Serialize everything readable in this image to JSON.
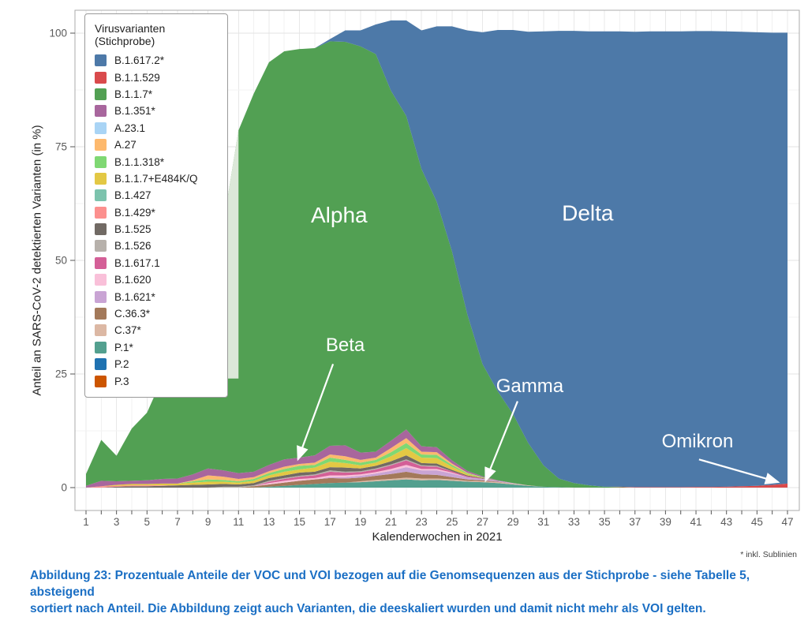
{
  "figure": {
    "footnote": "* inkl. Sublinien",
    "caption_line1": "Abbildung 23: Prozentuale Anteile der VOC und VOI bezogen auf die Genomsequenzen aus der Stichprobe - siehe Tabelle 5, absteigend",
    "caption_line2": "sortiert nach Anteil. Die Abbildung zeigt auch Varianten, die deeskaliert wurden und damit nicht mehr als VOI gelten.",
    "caption_color": "#1b6fc4"
  },
  "chart_data": {
    "type": "area",
    "stacked": true,
    "title": "",
    "legend_title": "Virusvarianten (Stichprobe)",
    "legend_position": "top-left-inside",
    "xlabel": "Kalenderwochen in 2021",
    "ylabel": "Anteil an SARS-CoV-2 detektierten Varianten (in %)",
    "xlim": [
      1,
      47
    ],
    "ylim": [
      0,
      100
    ],
    "grid": true,
    "x_ticks": [
      1,
      3,
      5,
      7,
      9,
      11,
      13,
      15,
      17,
      19,
      21,
      23,
      25,
      27,
      29,
      31,
      33,
      35,
      37,
      39,
      41,
      43,
      45,
      47
    ],
    "y_ticks": [
      0,
      25,
      50,
      75,
      100
    ],
    "weeks": [
      1,
      2,
      3,
      4,
      5,
      6,
      7,
      8,
      9,
      10,
      11,
      12,
      13,
      14,
      15,
      16,
      17,
      18,
      19,
      20,
      21,
      22,
      23,
      24,
      25,
      26,
      27,
      28,
      29,
      30,
      31,
      32,
      33,
      34,
      35,
      36,
      37,
      38,
      39,
      40,
      41,
      42,
      43,
      44,
      45,
      46,
      47
    ],
    "stack_note": "series listed in legend order; stacked bottom-to-top in reverse order (P.3 at bottom, B.1.617.2* on top); values are percent per calendar week, trailing zeros omitted",
    "series": [
      {
        "name": "B.1.617.2*",
        "color": "#4d79a8",
        "values": [
          0,
          0,
          0,
          0,
          0,
          0,
          0,
          0,
          0,
          0,
          0,
          0,
          0,
          0,
          0,
          0,
          0.5,
          2.5,
          3.5,
          6.5,
          15.5,
          21,
          30.5,
          38.6,
          49.5,
          62.4,
          73,
          79.5,
          84.5,
          90.5,
          95.5,
          98.5,
          99.5,
          99.9,
          100.2,
          100.2,
          100.2,
          100.3,
          100.3,
          100.3,
          100.3,
          100.3,
          100.2,
          100,
          99.8,
          99.5,
          99.2
        ]
      },
      {
        "name": "B.1.1.529",
        "color": "#d94a4c",
        "values": [
          0,
          0,
          0,
          0,
          0,
          0,
          0,
          0,
          0,
          0,
          0,
          0,
          0,
          0,
          0,
          0,
          0,
          0,
          0,
          0,
          0,
          0,
          0,
          0,
          0,
          0,
          0,
          0,
          0,
          0,
          0,
          0,
          0,
          0,
          0,
          0.1,
          0.1,
          0.1,
          0.1,
          0.1,
          0.15,
          0.15,
          0.2,
          0.3,
          0.4,
          0.6,
          0.9
        ]
      },
      {
        "name": "B.1.1.7*",
        "color": "#52a053",
        "values": [
          2.6,
          9,
          5.6,
          11.5,
          14.9,
          22.1,
          28,
          35.1,
          42.6,
          54,
          75.4,
          83.2,
          88.6,
          89.8,
          89.9,
          89.6,
          89,
          88.8,
          89.4,
          87.5,
          77,
          69,
          61,
          54,
          46,
          34.5,
          24.7,
          19.6,
          15.2,
          9.3,
          4.7,
          1.9,
          1,
          0.5,
          0.2,
          0.1
        ]
      },
      {
        "name": "B.1.351*",
        "color": "#a8669d",
        "values": [
          0.4,
          1.2,
          0.8,
          0.7,
          0.8,
          1,
          1.1,
          1.3,
          1.5,
          1.4,
          1.3,
          1.2,
          1.4,
          1.6,
          1.4,
          1.6,
          1.9,
          2.4,
          1.6,
          1.3,
          1.6,
          1.9,
          1.2,
          1.1,
          0.7,
          0.4,
          0.2,
          0.1
        ]
      },
      {
        "name": "A.23.1",
        "color": "#a9d4f5",
        "values": []
      },
      {
        "name": "A.27",
        "color": "#fdb96d",
        "values": [
          0,
          0,
          0,
          0,
          0,
          0,
          0,
          0.2,
          0.9,
          0.7,
          0.5,
          0.4,
          0.4,
          0.5,
          0.4,
          0.5,
          0.7,
          0.8,
          0.6,
          0.5,
          0.9,
          1.1,
          0.6,
          0.6,
          0.3,
          0.1
        ]
      },
      {
        "name": "B.1.1.318*",
        "color": "#7fd873",
        "values": [
          0,
          0,
          0,
          0,
          0,
          0,
          0,
          0.3,
          0.5,
          0.4,
          0.3,
          0.4,
          0.5,
          0.6,
          0.8,
          0.6,
          0.9,
          0.7,
          0.6,
          0.6,
          0.9,
          1.1,
          0.7,
          0.7,
          0.4,
          0.2,
          0.1
        ]
      },
      {
        "name": "B.1.1.7+E484K/Q",
        "color": "#e3c844",
        "values": [
          0,
          0,
          0.2,
          0.3,
          0.3,
          0.4,
          0.4,
          0.5,
          0.6,
          0.5,
          0.4,
          0.5,
          0.6,
          0.8,
          0.7,
          0.9,
          1.2,
          1,
          0.7,
          0.7,
          1.1,
          1.6,
          1.2,
          1.2,
          0.7,
          0.3,
          0.1
        ]
      },
      {
        "name": "B.1.427",
        "color": "#7cc3ad",
        "values": []
      },
      {
        "name": "B.1.429*",
        "color": "#fc908e",
        "values": [
          0,
          0.3,
          0.2,
          0.2,
          0.2,
          0.1
        ]
      },
      {
        "name": "B.1.525",
        "color": "#716a64",
        "values": [
          0,
          0,
          0.2,
          0.3,
          0.3,
          0.4,
          0.5,
          0.6,
          0.7,
          0.6,
          0.5,
          0.5,
          0.6,
          0.6,
          0.7,
          0.6,
          0.7,
          0.9,
          0.6,
          0.6,
          0.7,
          0.9,
          0.5,
          0.5,
          0.3,
          0.2,
          0.1
        ]
      },
      {
        "name": "B.1.526",
        "color": "#b7b1ab",
        "values": [
          0,
          0,
          0,
          0,
          0,
          0,
          0,
          0,
          0,
          0.2,
          0.2,
          0.2,
          0.2,
          0.2,
          0.2,
          0.2,
          0.3,
          0.2,
          0.2,
          0.2,
          0.2,
          0.2,
          0.2,
          0.2
        ]
      },
      {
        "name": "B.1.617.1",
        "color": "#d45f97",
        "values": [
          0,
          0,
          0,
          0,
          0,
          0,
          0,
          0,
          0,
          0,
          0,
          0,
          0.3,
          0.4,
          0.5,
          0.6,
          0.8,
          0.6,
          0.5,
          0.6,
          0.8,
          1,
          0.6,
          0.5,
          0.3,
          0.2,
          0.1
        ]
      },
      {
        "name": "B.1.620",
        "color": "#f9c0d9",
        "values": [
          0,
          0,
          0,
          0,
          0,
          0,
          0,
          0,
          0,
          0,
          0,
          0,
          0.3,
          0.4,
          0.4,
          0.3,
          0.4,
          0.4,
          0.3,
          0.3,
          0.4,
          0.5,
          0.3,
          0.3,
          0.2
        ]
      },
      {
        "name": "B.1.621*",
        "color": "#c9a4d4",
        "values": [
          0,
          0,
          0,
          0,
          0,
          0,
          0,
          0,
          0,
          0,
          0,
          0,
          0,
          0,
          0,
          0,
          0.2,
          0.3,
          0.4,
          0.5,
          0.7,
          1,
          0.9,
          1,
          0.8,
          0.5,
          0.3,
          0.2,
          0.1
        ]
      },
      {
        "name": "C.36.3*",
        "color": "#a3795a",
        "values": [
          0,
          0,
          0,
          0,
          0,
          0,
          0,
          0,
          0,
          0,
          0,
          0.3,
          0.5,
          0.7,
          0.9,
          1,
          1.1,
          0.9,
          0.8,
          0.9,
          1.1,
          1.3,
          0.9,
          0.8,
          0.5,
          0.3,
          0.2,
          0.1
        ]
      },
      {
        "name": "C.37*",
        "color": "#dcb8a4",
        "values": [
          0,
          0,
          0,
          0,
          0,
          0,
          0,
          0,
          0,
          0,
          0,
          0,
          0,
          0,
          0,
          0,
          0,
          0,
          0.2,
          0.3,
          0.3,
          0.4,
          0.4,
          0.3,
          0.3,
          0.2,
          0.2,
          0.2,
          0.2,
          0.1
        ]
      },
      {
        "name": "P.1*",
        "color": "#53a08f",
        "values": [
          0,
          0,
          0,
          0,
          0,
          0,
          0,
          0,
          0,
          0,
          0,
          0,
          0.2,
          0.4,
          0.6,
          0.8,
          1,
          1.1,
          1.2,
          1.4,
          1.6,
          1.8,
          1.6,
          1.7,
          1.5,
          1.3,
          1.2,
          1,
          0.7,
          0.4,
          0.2,
          0.1
        ]
      },
      {
        "name": "P.2",
        "color": "#1f72b1",
        "values": []
      },
      {
        "name": "P.3",
        "color": "#cc5500",
        "values": []
      }
    ],
    "annotations": [
      {
        "label": "Alpha",
        "week": 17.6,
        "pct": 60,
        "emphasis": true
      },
      {
        "label": "Delta",
        "week": 33.9,
        "pct": 60.5,
        "emphasis": true
      },
      {
        "label": "Beta",
        "week": 18.0,
        "pct": 31.5,
        "arrow_from": [
          17.2,
          27.2
        ],
        "arrow_to": [
          14.9,
          6.2
        ]
      },
      {
        "label": "Gamma",
        "week": 30.1,
        "pct": 22.5,
        "arrow_from": [
          29.3,
          19
        ],
        "arrow_to": [
          27.2,
          1.5
        ]
      },
      {
        "label": "Omikron",
        "week": 41.1,
        "pct": 10.3,
        "arrow_from": [
          41.2,
          6.2
        ],
        "arrow_to": [
          46.4,
          1.2
        ]
      }
    ],
    "highlight_region": {
      "top_series": "B.1.1.7*",
      "week_start": 6,
      "week_end": 11,
      "baseline_pct": 24,
      "color": "#dce8d9"
    }
  }
}
